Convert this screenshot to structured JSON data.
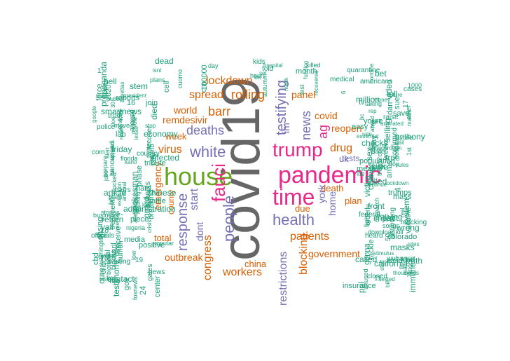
{
  "colors": {
    "teal": "#1b9e77",
    "orange": "#d95f02",
    "purple": "#7570b3",
    "magenta": "#e7298a",
    "green": "#66a61e",
    "gray": "#666666"
  },
  "words": [
    {
      "text": "covid19",
      "color": "gray"
    },
    {
      "text": "house",
      "color": "green"
    },
    {
      "text": "pandemic",
      "color": "magenta"
    },
    {
      "text": "trump",
      "color": "magenta"
    },
    {
      "text": "time",
      "color": "magenta"
    },
    {
      "text": "fauci",
      "color": "magenta"
    },
    {
      "text": "white",
      "color": "purple"
    },
    {
      "text": "people",
      "color": "purple"
    },
    {
      "text": "response",
      "color": "purple"
    },
    {
      "text": "testifying",
      "color": "purple"
    },
    {
      "text": "health",
      "color": "purple"
    },
    {
      "text": "deaths",
      "color": "purple"
    },
    {
      "text": "news",
      "color": "purple"
    },
    {
      "text": "barr",
      "color": "orange"
    },
    {
      "text": "virus",
      "color": "orange"
    },
    {
      "text": "patients",
      "color": "orange"
    },
    {
      "text": "lockdown",
      "color": "orange"
    },
    {
      "text": "rolling",
      "color": "orange"
    },
    {
      "text": "spread",
      "color": "orange"
    },
    {
      "text": "congress",
      "color": "orange"
    },
    {
      "text": "workers",
      "color": "orange"
    },
    {
      "text": "blocking",
      "color": "orange"
    },
    {
      "text": "government",
      "color": "orange"
    },
    {
      "text": "drug",
      "color": "orange"
    },
    {
      "text": "reopen",
      "color": "orange"
    },
    {
      "text": "ag",
      "color": "magenta"
    },
    {
      "text": "restrictions",
      "color": "purple"
    },
    {
      "text": "world",
      "color": "orange"
    },
    {
      "text": "remdesivir",
      "color": "orange"
    },
    {
      "text": "week",
      "color": "orange"
    },
    {
      "text": "dont",
      "color": "purple"
    },
    {
      "text": "start",
      "color": "purple"
    },
    {
      "text": "emergency",
      "color": "orange"
    },
    {
      "text": "county",
      "color": "orange"
    },
    {
      "text": "outbreak",
      "color": "orange"
    },
    {
      "text": "total",
      "color": "orange"
    },
    {
      "text": "panel",
      "color": "orange"
    },
    {
      "text": "covid",
      "color": "orange"
    },
    {
      "text": "death",
      "color": "orange"
    },
    {
      "text": "china",
      "color": "orange"
    },
    {
      "text": "home",
      "color": "purple"
    },
    {
      "text": "york",
      "color": "purple"
    },
    {
      "text": "plan",
      "color": "orange"
    },
    {
      "text": "due",
      "color": "orange"
    },
    {
      "text": "im",
      "color": "purple"
    },
    {
      "text": "uk",
      "color": "purple"
    },
    {
      "text": "tests",
      "color": "purple"
    },
    {
      "text": "friday",
      "color": "teal"
    },
    {
      "text": "change",
      "color": "teal"
    },
    {
      "text": "public",
      "color": "teal"
    },
    {
      "text": "stop",
      "color": "teal"
    },
    {
      "text": "money",
      "color": "teal"
    },
    {
      "text": "reports",
      "color": "teal"
    },
    {
      "text": "confirmed",
      "color": "teal"
    },
    {
      "text": "youre",
      "color": "teal"
    },
    {
      "text": "days",
      "color": "teal"
    },
    {
      "text": "test",
      "color": "teal"
    },
    {
      "text": "dr",
      "color": "teal"
    },
    {
      "text": "fda",
      "color": "teal"
    },
    {
      "text": "crisis",
      "color": "teal"
    },
    {
      "text": "city",
      "color": "teal"
    },
    {
      "text": "country",
      "color": "teal"
    },
    {
      "text": "video",
      "color": "teal"
    },
    {
      "text": "positive",
      "color": "teal"
    },
    {
      "text": "testing",
      "color": "teal"
    },
    {
      "text": "medical",
      "color": "teal"
    },
    {
      "text": "announced",
      "color": "teal"
    },
    {
      "text": "recovered",
      "color": "teal"
    },
    {
      "text": "hospital",
      "color": "teal"
    },
    {
      "text": "hospitals",
      "color": "teal"
    },
    {
      "text": "wuhan",
      "color": "teal"
    },
    {
      "text": "washington",
      "color": "teal"
    },
    {
      "text": "michigan",
      "color": "teal"
    },
    {
      "text": "economy",
      "color": "teal"
    },
    {
      "text": "blocks",
      "color": "teal"
    },
    {
      "text": "breaking",
      "color": "teal"
    },
    {
      "text": "system",
      "color": "teal"
    },
    {
      "text": "officials",
      "color": "teal"
    },
    {
      "text": "anthony",
      "color": "teal"
    },
    {
      "text": "treatment",
      "color": "teal"
    },
    {
      "text": "americans",
      "color": "teal"
    },
    {
      "text": "tested",
      "color": "teal"
    },
    {
      "text": "spokesman",
      "color": "teal"
    },
    {
      "text": "stimulus",
      "color": "teal"
    },
    {
      "text": "weeks",
      "color": "teal"
    },
    {
      "text": "lives",
      "color": "teal"
    },
    {
      "text": "business",
      "color": "teal"
    },
    {
      "text": "quarantine",
      "color": "teal"
    },
    {
      "text": "foxnews",
      "color": "teal"
    },
    {
      "text": "smartnews",
      "color": "teal"
    },
    {
      "text": "schools",
      "color": "teal"
    },
    {
      "text": "california",
      "color": "teal"
    },
    {
      "text": "mental",
      "color": "teal"
    },
    {
      "text": "police",
      "color": "teal"
    },
    {
      "text": "administration",
      "color": "teal"
    },
    {
      "text": "continue",
      "color": "teal"
    },
    {
      "text": "blocked",
      "color": "teal"
    },
    {
      "text": "care",
      "color": "teal"
    },
    {
      "text": "read",
      "color": "teal"
    },
    {
      "text": "day",
      "color": "teal"
    },
    {
      "text": "died",
      "color": "teal"
    },
    {
      "text": "bill",
      "color": "teal"
    },
    {
      "text": "2020",
      "color": "teal"
    },
    {
      "text": "future",
      "color": "teal"
    },
    {
      "text": "treat",
      "color": "teal"
    },
    {
      "text": "told",
      "color": "teal"
    },
    {
      "text": "real",
      "color": "teal"
    },
    {
      "text": "thousands",
      "color": "teal"
    },
    {
      "text": "raise",
      "color": "teal"
    },
    {
      "text": "recover",
      "color": "teal"
    },
    {
      "text": "orderly",
      "color": "teal"
    },
    {
      "text": "google",
      "color": "teal"
    },
    {
      "text": "waiting",
      "color": "teal"
    },
    {
      "text": "ready",
      "color": "teal"
    },
    {
      "text": "alert",
      "color": "teal"
    },
    {
      "text": "gop",
      "color": "teal"
    },
    {
      "text": "taking",
      "color": "teal"
    },
    {
      "text": "human",
      "color": "teal"
    },
    {
      "text": "allegedly",
      "color": "teal"
    },
    {
      "text": "funding",
      "color": "teal"
    },
    {
      "text": "march",
      "color": "teal"
    },
    {
      "text": "arms",
      "color": "teal"
    },
    {
      "text": "songs",
      "color": "teal"
    },
    {
      "text": "killed",
      "color": "teal"
    },
    {
      "text": "million",
      "color": "teal"
    },
    {
      "text": "research",
      "color": "teal"
    },
    {
      "text": "nigeria",
      "color": "teal"
    },
    {
      "text": "barrs",
      "color": "teal"
    },
    {
      "text": "relief",
      "color": "teal"
    },
    {
      "text": "gates",
      "color": "teal"
    },
    {
      "text": "essential",
      "color": "teal"
    },
    {
      "text": "sites",
      "color": "teal"
    },
    {
      "text": "immune",
      "color": "teal"
    },
    {
      "text": "set",
      "color": "teal"
    },
    {
      "text": "prepare",
      "color": "teal"
    },
    {
      "text": "front",
      "color": "teal"
    },
    {
      "text": "contact",
      "color": "teal"
    },
    {
      "text": "mocking",
      "color": "teal"
    },
    {
      "text": "ahead",
      "color": "teal"
    },
    {
      "text": "angry",
      "color": "teal"
    },
    {
      "text": "unused",
      "color": "teal"
    },
    {
      "text": "download",
      "color": "teal"
    },
    {
      "text": "living",
      "color": "teal"
    },
    {
      "text": "bet",
      "color": "teal"
    },
    {
      "text": "hope",
      "color": "teal"
    },
    {
      "text": "tweetlas",
      "color": "teal"
    },
    {
      "text": "cuomo",
      "color": "teal"
    },
    {
      "text": "force",
      "color": "teal"
    },
    {
      "text": "kano",
      "color": "teal"
    },
    {
      "text": "population",
      "color": "teal"
    },
    {
      "text": "infected",
      "color": "teal"
    },
    {
      "text": "reporting",
      "color": "teal"
    },
    {
      "text": "mass",
      "color": "teal"
    },
    {
      "text": "masks",
      "color": "teal"
    },
    {
      "text": "article",
      "color": "teal"
    },
    {
      "text": "dead",
      "color": "teal"
    },
    {
      "text": "critics",
      "color": "teal"
    },
    {
      "text": "april",
      "color": "teal"
    },
    {
      "text": "meat",
      "color": "teal"
    },
    {
      "text": "receive",
      "color": "teal"
    },
    {
      "text": "hard",
      "color": "teal"
    },
    {
      "text": "staff",
      "color": "teal"
    },
    {
      "text": "cell",
      "color": "teal"
    },
    {
      "text": "makes",
      "color": "teal"
    },
    {
      "text": "yorks",
      "color": "teal"
    },
    {
      "text": "frontline",
      "color": "teal"
    },
    {
      "text": "100000",
      "color": "teal"
    },
    {
      "text": "online",
      "color": "teal"
    },
    {
      "text": "distancing",
      "color": "teal"
    },
    {
      "text": "cost",
      "color": "teal"
    },
    {
      "text": "piece",
      "color": "teal"
    },
    {
      "text": "selling",
      "color": "teal"
    },
    {
      "text": "services",
      "color": "teal"
    },
    {
      "text": "federal",
      "color": "teal"
    },
    {
      "text": "checks",
      "color": "teal"
    },
    {
      "text": "phase",
      "color": "teal"
    },
    {
      "text": "sex",
      "color": "teal"
    },
    {
      "text": "twitter",
      "color": "teal"
    },
    {
      "text": "colorado",
      "color": "teal"
    },
    {
      "text": "testimony",
      "color": "teal"
    },
    {
      "text": "save",
      "color": "teal"
    },
    {
      "text": "extension",
      "color": "teal"
    },
    {
      "text": "florida",
      "color": "teal"
    },
    {
      "text": "join",
      "color": "teal"
    },
    {
      "text": "autumn",
      "color": "teal"
    },
    {
      "text": "cure",
      "color": "teal"
    },
    {
      "text": "news",
      "color": "teal"
    },
    {
      "text": "guard",
      "color": "teal"
    },
    {
      "text": "easy",
      "color": "teal"
    },
    {
      "text": "local",
      "color": "teal"
    },
    {
      "text": "texas",
      "color": "teal"
    },
    {
      "text": "closed",
      "color": "teal"
    },
    {
      "text": "plans",
      "color": "teal"
    },
    {
      "text": "cases",
      "color": "teal"
    },
    {
      "text": "lockdown",
      "color": "teal"
    },
    {
      "text": "mask",
      "color": "teal"
    },
    {
      "text": "gonna",
      "color": "teal"
    },
    {
      "text": "biotech",
      "color": "teal"
    },
    {
      "text": "yall",
      "color": "teal"
    },
    {
      "text": "citizens",
      "color": "teal"
    },
    {
      "text": "popular",
      "color": "teal"
    },
    {
      "text": "fund",
      "color": "teal"
    },
    {
      "text": "tribute",
      "color": "teal"
    },
    {
      "text": "called",
      "color": "teal"
    },
    {
      "text": "chinese",
      "color": "teal"
    },
    {
      "text": "biden",
      "color": "teal"
    },
    {
      "text": "animated",
      "color": "teal"
    },
    {
      "text": "insurance",
      "color": "teal"
    },
    {
      "text": "pay",
      "color": "teal"
    },
    {
      "text": "media",
      "color": "teal"
    },
    {
      "text": "victim",
      "color": "teal"
    },
    {
      "text": "amid",
      "color": "teal"
    },
    {
      "text": "free",
      "color": "teal"
    },
    {
      "text": "lost",
      "color": "teal"
    },
    {
      "text": "vaccine",
      "color": "teal"
    },
    {
      "text": "president",
      "color": "teal"
    },
    {
      "text": "com",
      "color": "teal"
    },
    {
      "text": "kill",
      "color": "teal"
    },
    {
      "text": "antiviral",
      "color": "teal"
    },
    {
      "text": "bc",
      "color": "teal"
    },
    {
      "text": "id",
      "color": "teal"
    },
    {
      "text": "life",
      "color": "teal"
    },
    {
      "text": "date",
      "color": "teal"
    },
    {
      "text": "return",
      "color": "teal"
    },
    {
      "text": "fight",
      "color": "teal"
    },
    {
      "text": "month",
      "color": "teal"
    },
    {
      "text": "lab",
      "color": "teal"
    },
    {
      "text": "sue",
      "color": "teal"
    },
    {
      "text": "rent",
      "color": "teal"
    },
    {
      "text": "24",
      "color": "teal"
    },
    {
      "text": "kids",
      "color": "teal"
    },
    {
      "text": "ny",
      "color": "teal"
    },
    {
      "text": "rep",
      "color": "teal"
    },
    {
      "text": "30",
      "color": "teal"
    },
    {
      "text": "low",
      "color": "teal"
    },
    {
      "text": "19",
      "color": "teal"
    },
    {
      "text": "heard",
      "color": "teal"
    },
    {
      "text": "3",
      "color": "teal"
    },
    {
      "text": "4",
      "color": "teal"
    },
    {
      "text": "1",
      "color": "teal"
    },
    {
      "text": "6",
      "color": "teal"
    },
    {
      "text": "7",
      "color": "teal"
    },
    {
      "text": "15",
      "color": "teal"
    },
    {
      "text": "17",
      "color": "teal"
    },
    {
      "text": "50",
      "color": "teal"
    },
    {
      "text": "11",
      "color": "teal"
    },
    {
      "text": "16",
      "color": "teal"
    },
    {
      "text": "18",
      "color": "teal"
    },
    {
      "text": "1000",
      "color": "teal"
    },
    {
      "text": "trumps",
      "color": "teal"
    },
    {
      "text": "doe",
      "color": "teal"
    },
    {
      "text": "ive",
      "color": "teal"
    },
    {
      "text": "truth",
      "color": "teal"
    },
    {
      "text": "isnt",
      "color": "teal"
    },
    {
      "text": "trial",
      "color": "teal"
    },
    {
      "text": "jail",
      "color": "teal"
    },
    {
      "text": "bit",
      "color": "teal"
    },
    {
      "text": "ict",
      "color": "teal"
    },
    {
      "text": "rate",
      "color": "teal"
    },
    {
      "text": "sick",
      "color": "teal"
    },
    {
      "text": "dumb",
      "color": "teal"
    },
    {
      "text": "plant",
      "color": "teal"
    },
    {
      "text": "cbd",
      "color": "teal"
    },
    {
      "text": "propaganda",
      "color": "teal"
    },
    {
      "text": "vote",
      "color": "teal"
    },
    {
      "text": "impact",
      "color": "teal"
    },
    {
      "text": "true",
      "color": "teal"
    },
    {
      "text": "easing",
      "color": "teal"
    },
    {
      "text": "tackle",
      "color": "teal"
    },
    {
      "text": "stem",
      "color": "teal"
    },
    {
      "text": "dan",
      "color": "teal"
    },
    {
      "text": "hell",
      "color": "teal"
    },
    {
      "text": "breakthrough",
      "color": "teal"
    },
    {
      "text": "allowed",
      "color": "teal"
    },
    {
      "text": "center",
      "color": "teal"
    },
    {
      "text": "battle",
      "color": "teal"
    },
    {
      "text": "move",
      "color": "teal"
    },
    {
      "text": "wrong",
      "color": "teal"
    },
    {
      "text": "sell",
      "color": "teal"
    },
    {
      "text": "ppl",
      "color": "teal"
    },
    {
      "text": "cuts",
      "color": "teal"
    },
    {
      "text": "jobs",
      "color": "teal"
    },
    {
      "text": "stories",
      "color": "teal"
    },
    {
      "text": "ha",
      "color": "teal"
    },
    {
      "text": "tv",
      "color": "teal"
    },
    {
      "text": "1st",
      "color": "teal"
    },
    {
      "text": "gov",
      "color": "teal"
    },
    {
      "text": "bat",
      "color": "teal"
    },
    {
      "text": "rules",
      "color": "teal"
    },
    {
      "text": "appears",
      "color": "teal"
    },
    {
      "text": "toll",
      "color": "teal"
    },
    {
      "text": "cnn",
      "color": "teal"
    },
    {
      "text": "hours",
      "color": "teal"
    },
    {
      "text": "daily",
      "color": "teal"
    },
    {
      "text": "killed",
      "color": "teal"
    }
  ]
}
